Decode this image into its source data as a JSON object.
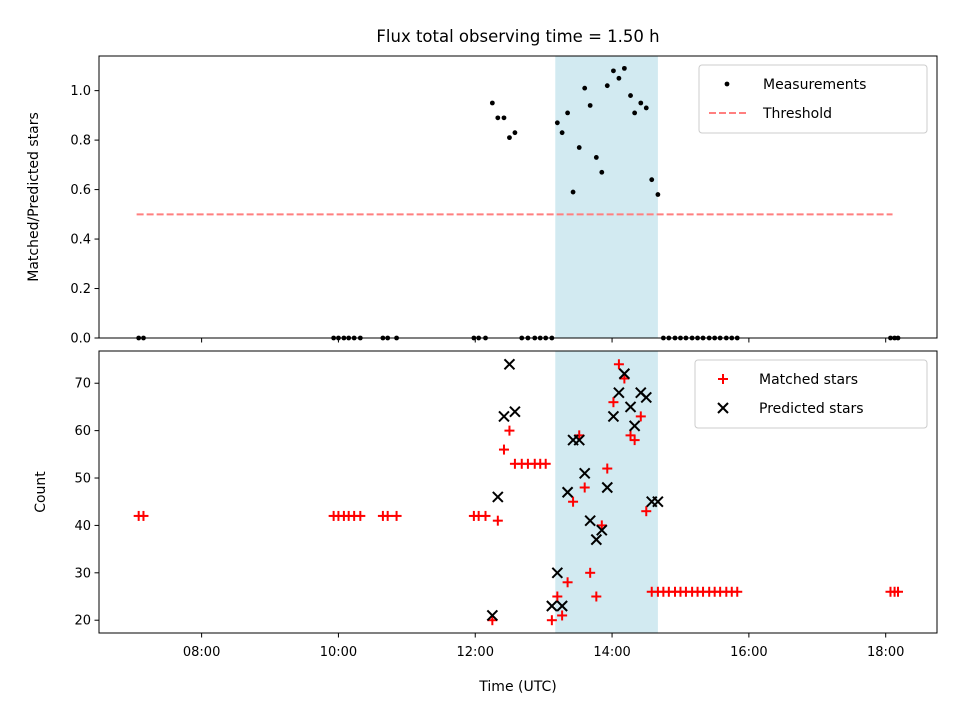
{
  "chart_data": {
    "title": "Flux total observing time = 1.50 h",
    "xlabel": "Time (UTC)",
    "x_unit": "hours UTC (decimal)",
    "xlim": [
      6.5,
      18.75
    ],
    "xticks": [
      {
        "v": 8,
        "label": "08:00"
      },
      {
        "v": 10,
        "label": "10:00"
      },
      {
        "v": 12,
        "label": "12:00"
      },
      {
        "v": 14,
        "label": "14:00"
      },
      {
        "v": 16,
        "label": "16:00"
      },
      {
        "v": 18,
        "label": "18:00"
      }
    ],
    "shaded_span": {
      "x0": 13.17,
      "x1": 14.67,
      "color": "#add8e6"
    },
    "panels": [
      {
        "type": "scatter",
        "ylabel": "Matched/Predicted stars",
        "ylim": [
          0,
          1.14
        ],
        "yticks": [
          {
            "v": 0,
            "label": "0.0"
          },
          {
            "v": 0.2,
            "label": "0.2"
          },
          {
            "v": 0.4,
            "label": "0.4"
          },
          {
            "v": 0.6,
            "label": "0.6"
          },
          {
            "v": 0.8,
            "label": "0.8"
          },
          {
            "v": 1.0,
            "label": "1.0"
          }
        ],
        "legend": {
          "position": "upper right",
          "entries": [
            "Measurements",
            "Threshold"
          ]
        },
        "series": [
          {
            "name": "Measurements",
            "marker": "dot",
            "color": "#000000",
            "x": [
              7.08,
              7.15,
              9.93,
              10.0,
              10.08,
              10.15,
              10.23,
              10.32,
              10.65,
              10.72,
              10.85,
              11.98,
              12.05,
              12.15,
              12.25,
              12.33,
              12.42,
              12.5,
              12.58,
              12.68,
              12.77,
              12.87,
              12.95,
              13.03,
              13.12,
              13.2,
              13.27,
              13.35,
              13.43,
              13.52,
              13.6,
              13.68,
              13.77,
              13.85,
              13.93,
              14.02,
              14.1,
              14.18,
              14.27,
              14.33,
              14.42,
              14.5,
              14.58,
              14.67,
              14.75,
              14.83,
              14.92,
              15.0,
              15.08,
              15.17,
              15.25,
              15.33,
              15.42,
              15.5,
              15.58,
              15.67,
              15.75,
              15.83,
              18.07,
              18.13,
              18.18
            ],
            "y": [
              0,
              0,
              0,
              0,
              0,
              0,
              0,
              0,
              0,
              0,
              0,
              0,
              0,
              0,
              0.95,
              0.89,
              0.89,
              0.81,
              0.83,
              0,
              0,
              0,
              0,
              0,
              0,
              0.87,
              0.83,
              0.91,
              0.59,
              0.77,
              1.01,
              0.94,
              0.73,
              0.67,
              1.02,
              1.08,
              1.05,
              1.09,
              0.98,
              0.91,
              0.95,
              0.93,
              0.64,
              0.58,
              0,
              0,
              0,
              0,
              0,
              0,
              0,
              0,
              0,
              0,
              0,
              0,
              0,
              0,
              0,
              0,
              0
            ]
          },
          {
            "name": "Threshold",
            "line": "dashed",
            "color": "#ff7f7f",
            "x": [
              7.05,
              18.1
            ],
            "y": [
              0.5,
              0.5
            ]
          }
        ]
      },
      {
        "type": "scatter",
        "ylabel": "Count",
        "ylim": [
          17.3,
          76.8
        ],
        "yticks": [
          {
            "v": 20,
            "label": "20"
          },
          {
            "v": 30,
            "label": "30"
          },
          {
            "v": 40,
            "label": "40"
          },
          {
            "v": 50,
            "label": "50"
          },
          {
            "v": 60,
            "label": "60"
          },
          {
            "v": 70,
            "label": "70"
          }
        ],
        "legend": {
          "position": "upper right",
          "entries": [
            "Matched stars",
            "Predicted stars"
          ]
        },
        "series": [
          {
            "name": "Matched stars",
            "marker": "plus",
            "color": "#ff0000",
            "x": [
              7.08,
              7.15,
              9.93,
              10.0,
              10.08,
              10.15,
              10.23,
              10.32,
              10.65,
              10.72,
              10.85,
              11.98,
              12.05,
              12.15,
              12.25,
              12.33,
              12.42,
              12.5,
              12.58,
              12.68,
              12.77,
              12.87,
              12.95,
              13.03,
              13.12,
              13.2,
              13.27,
              13.35,
              13.43,
              13.52,
              13.6,
              13.68,
              13.77,
              13.85,
              13.93,
              14.02,
              14.1,
              14.18,
              14.27,
              14.33,
              14.42,
              14.5,
              14.58,
              14.67,
              14.75,
              14.83,
              14.92,
              15.0,
              15.08,
              15.17,
              15.25,
              15.33,
              15.42,
              15.5,
              15.58,
              15.67,
              15.75,
              15.83,
              18.07,
              18.13,
              18.18
            ],
            "y": [
              42,
              42,
              42,
              42,
              42,
              42,
              42,
              42,
              42,
              42,
              42,
              42,
              42,
              42,
              20,
              41,
              56,
              60,
              53,
              53,
              53,
              53,
              53,
              53,
              20,
              25,
              21,
              28,
              45,
              59,
              48,
              30,
              25,
              40,
              52,
              66,
              74,
              71,
              59,
              58,
              63,
              43,
              26,
              26,
              26,
              26,
              26,
              26,
              26,
              26,
              26,
              26,
              26,
              26,
              26,
              26,
              26,
              26,
              26,
              26,
              26
            ]
          },
          {
            "name": "Predicted stars",
            "marker": "x",
            "color": "#000000",
            "x": [
              12.25,
              12.33,
              12.42,
              12.5,
              12.58,
              13.12,
              13.2,
              13.27,
              13.35,
              13.43,
              13.52,
              13.6,
              13.68,
              13.77,
              13.85,
              13.93,
              14.02,
              14.1,
              14.18,
              14.27,
              14.33,
              14.42,
              14.5,
              14.58,
              14.67
            ],
            "y": [
              21,
              46,
              63,
              74,
              64,
              23,
              30,
              23,
              47,
              58,
              58,
              51,
              41,
              37,
              39,
              48,
              63,
              68,
              72,
              65,
              61,
              68,
              67,
              45,
              45
            ]
          }
        ]
      }
    ]
  }
}
